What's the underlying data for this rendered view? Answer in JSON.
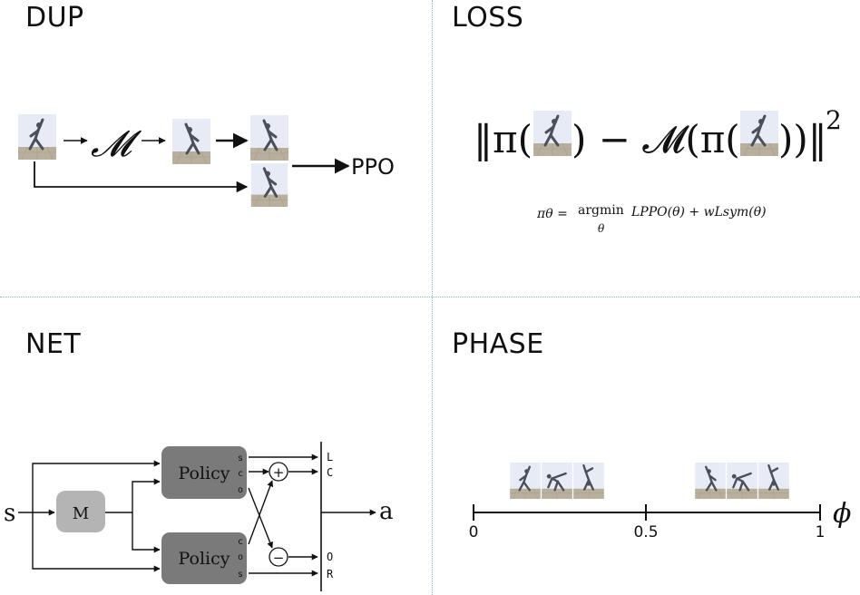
{
  "panels": {
    "dup": {
      "title": "DUP",
      "mirror_symbol": "𝓜",
      "output_label": "PPO"
    },
    "loss": {
      "title": "LOSS",
      "norm_open": "‖π(",
      "minus_mirror": ") − 𝓜(π(",
      "norm_close": "))‖",
      "exponent": "2",
      "formula_lhs": "πθ = ",
      "argmin": "argmin",
      "argmin_sub": "θ",
      "formula_rhs": "LPPO(θ) + wLsym(θ)"
    },
    "net": {
      "title": "NET",
      "input_label": "s",
      "mirror_box": "M",
      "policy_top": "Policy",
      "policy_bottom": "Policy",
      "top_ports": [
        "s",
        "c",
        "o"
      ],
      "bottom_ports": [
        "c",
        "o",
        "s"
      ],
      "plus_op": "+",
      "minus_op": "−",
      "out_top": [
        "L",
        "C"
      ],
      "out_bottom": [
        "O",
        "R"
      ],
      "output_label": "a"
    },
    "phase": {
      "title": "PHASE",
      "ticks": [
        "0",
        "0.5",
        "1"
      ],
      "axis_symbol": "ϕ"
    }
  },
  "colors": {
    "policy_box": "#7a7a7a",
    "mirror_box": "#b4b4b4",
    "thumb_sky": "#e6ebf5",
    "thumb_floor": "#b8b09c",
    "figure": "#4a4f58"
  },
  "icons": [
    "humanoid-thumbnail-icon",
    "arrow-icon",
    "plus-circle-icon",
    "minus-circle-icon"
  ]
}
